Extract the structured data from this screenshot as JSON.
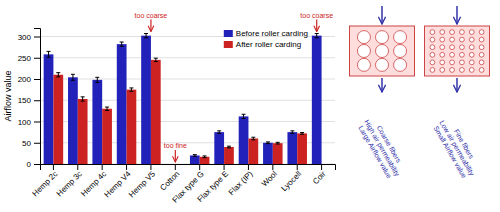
{
  "chart_data": {
    "type": "bar",
    "categories": [
      "Hemp 2c",
      "Hemp 3c",
      "Hemp 4c",
      "Hemp V4",
      "Hemp V5",
      "Cotton",
      "Flax type G",
      "Flax type E",
      "Flax (IP)",
      "Wool",
      "Lyocell",
      "Coir"
    ],
    "series": [
      {
        "name": "Before roller carding",
        "color": "#2222bb",
        "values": [
          258,
          204,
          198,
          282,
          302,
          0,
          20,
          75,
          112,
          50,
          75,
          302
        ],
        "errors": [
          7,
          7,
          6,
          5,
          5,
          0,
          2,
          3,
          5,
          2,
          3,
          5
        ]
      },
      {
        "name": "After roller carding",
        "color": "#cc2222",
        "values": [
          210,
          153,
          130,
          175,
          245,
          0,
          17,
          40,
          60,
          49,
          72,
          0
        ],
        "errors": [
          5,
          5,
          4,
          4,
          4,
          0,
          2,
          2,
          3,
          2,
          2,
          0
        ]
      }
    ],
    "ylabel": "Airflow value",
    "ylim": [
      0,
      320
    ],
    "yticks": [
      0,
      50,
      100,
      150,
      200,
      250,
      300
    ],
    "grid": true,
    "legend": "upper right",
    "annotations": [
      {
        "text": "too coarse",
        "category": "Hemp V5",
        "color": "#cc2222"
      },
      {
        "text": "too coarse",
        "category": "Coir",
        "color": "#cc2222"
      },
      {
        "text": "too fine",
        "category": "Cotton",
        "color": "#cc2222"
      }
    ],
    "diagram_labels": [
      {
        "lines": [
          "Coarse fibers",
          "High air permeability",
          "Large Airflow value"
        ]
      },
      {
        "lines": [
          "Fine fibers",
          "Low air permeability",
          "Small Airflow value"
        ]
      }
    ]
  }
}
